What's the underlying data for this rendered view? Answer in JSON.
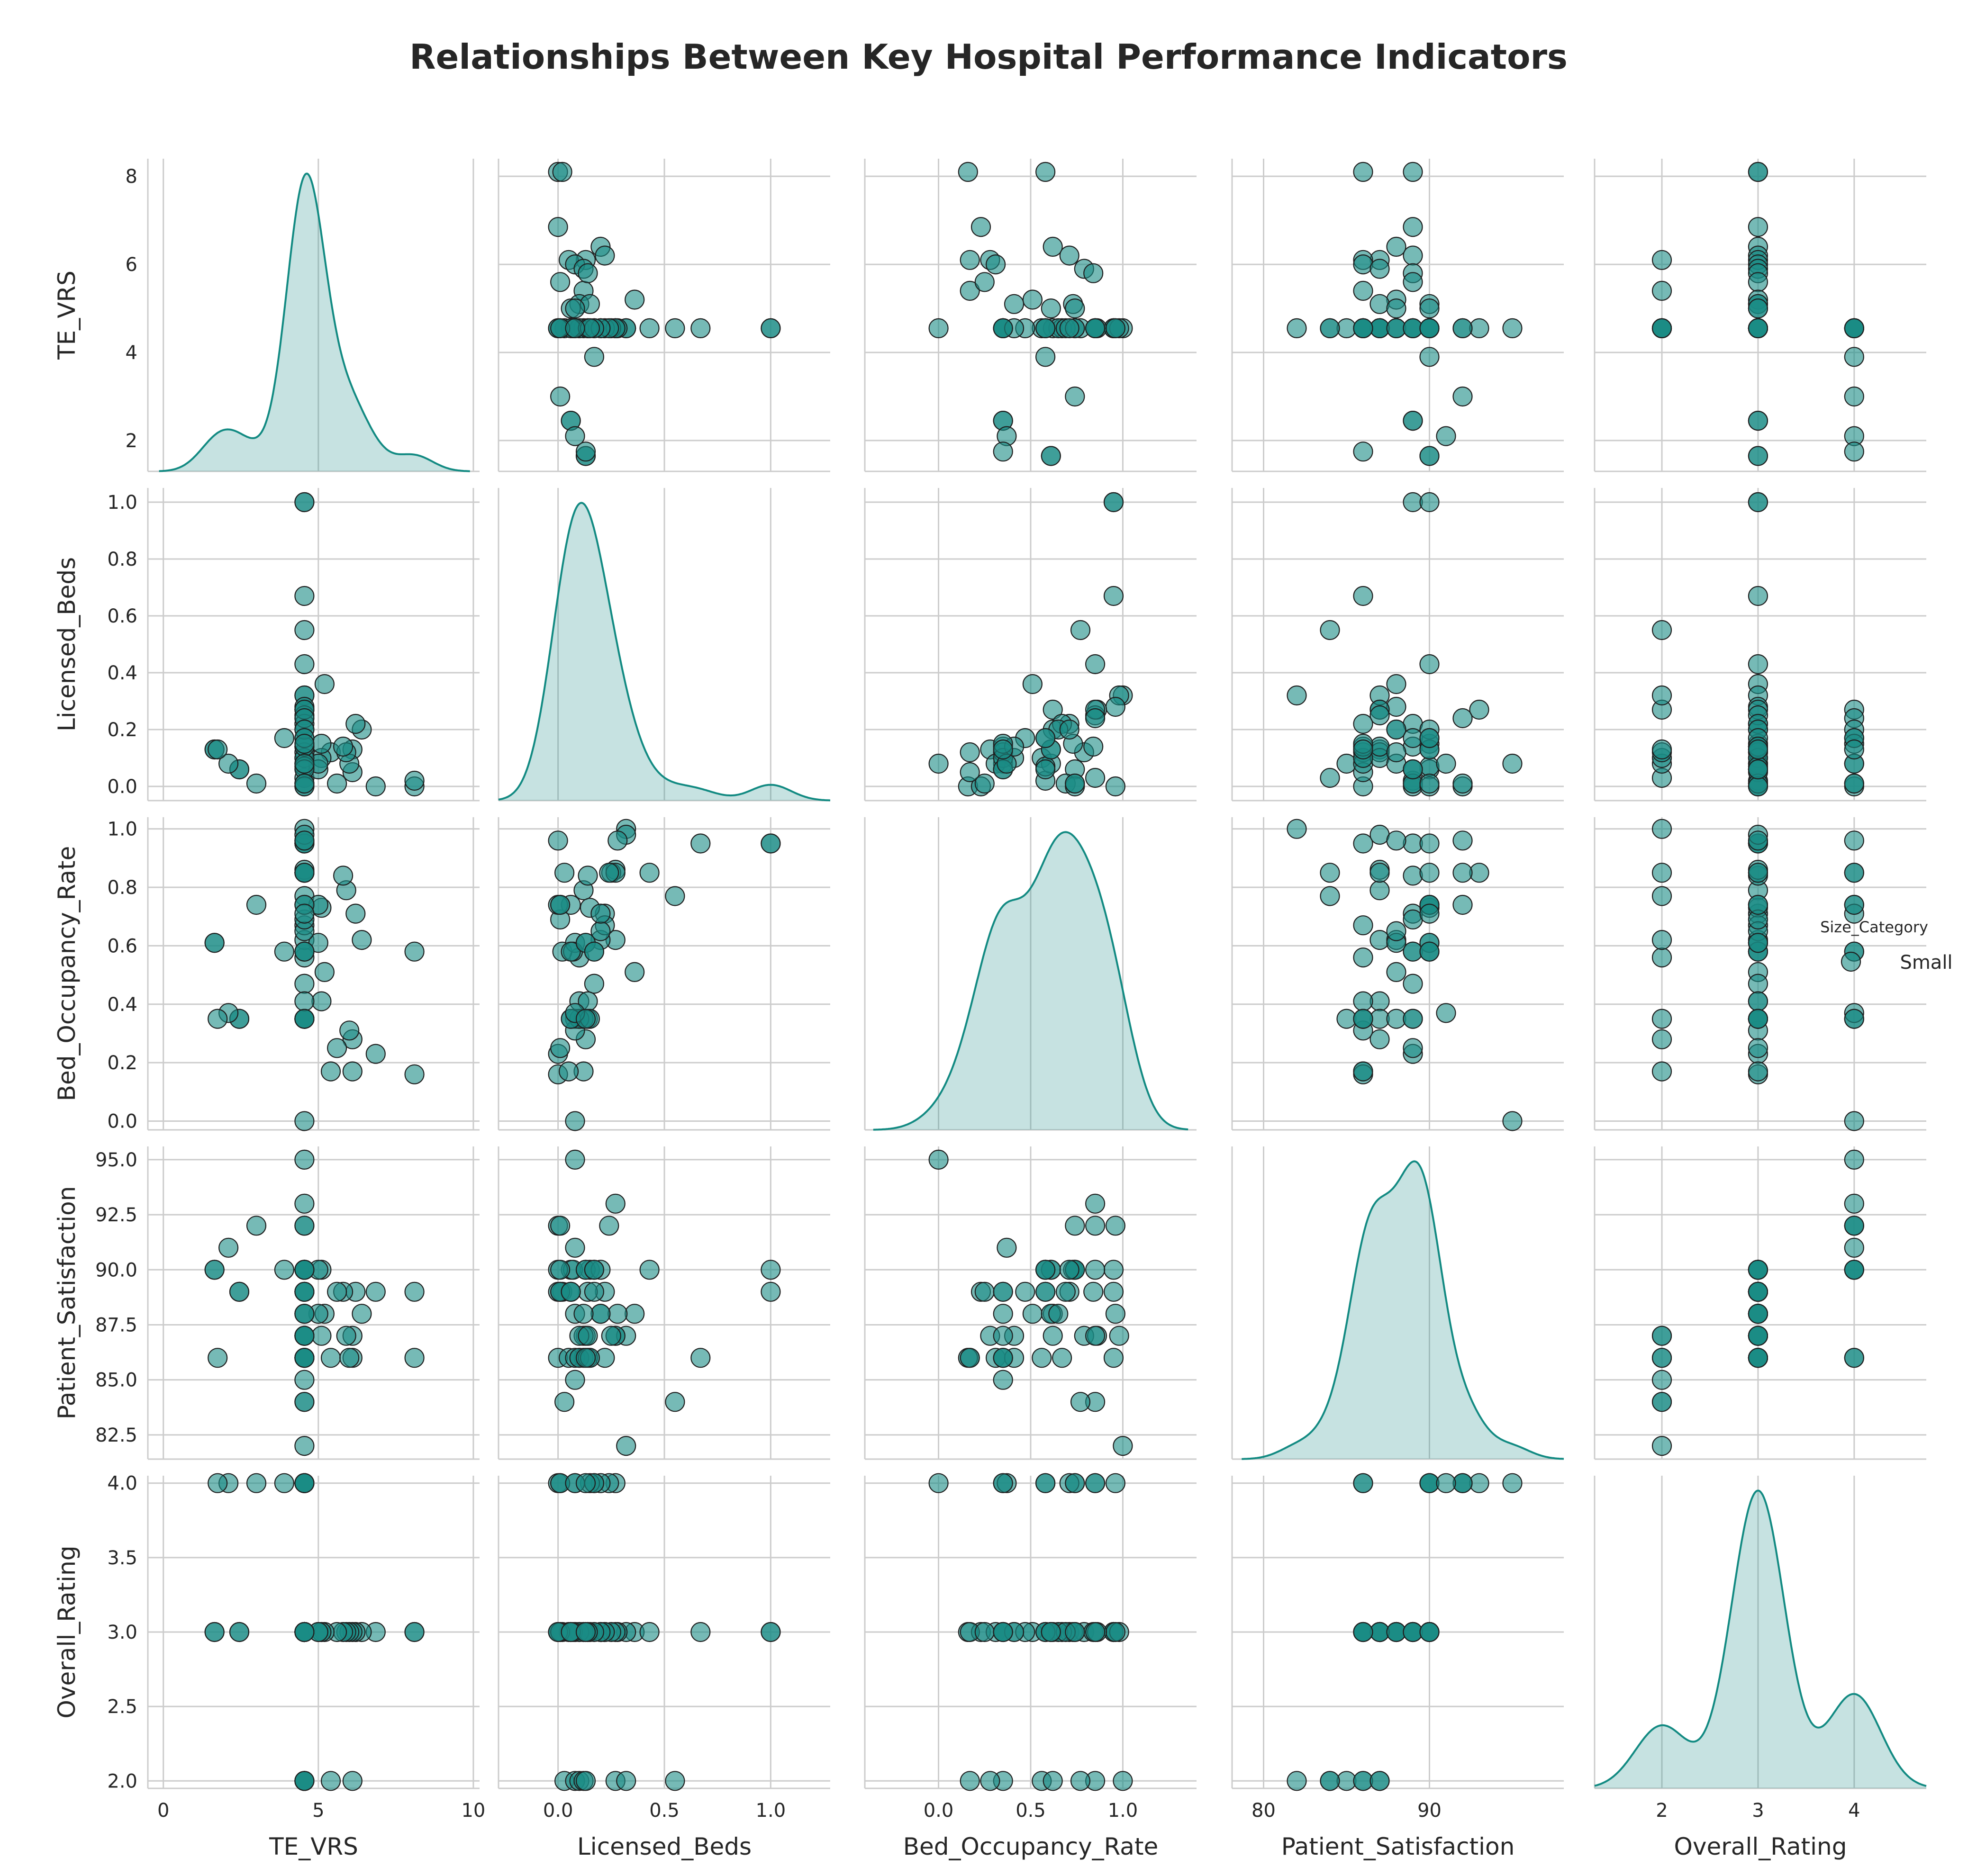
{
  "title": "Relationships Between Key Hospital Performance Indicators",
  "legend": {
    "title": "Size_Category",
    "label": "Small"
  },
  "colors": {
    "point": "#1a8c86",
    "kde_fill": "#1a8c86",
    "kde_line": "#128a82",
    "grid": "#cccccc"
  },
  "chart_data": {
    "type": "scatter",
    "variables": [
      "TE_VRS",
      "Licensed_Beds",
      "Bed_Occupancy_Rate",
      "Patient_Satisfaction",
      "Overall_Rating"
    ],
    "hue": {
      "name": "Size_Category",
      "levels": [
        "Small"
      ]
    },
    "diagonal": "kde",
    "axes": {
      "TE_VRS": {
        "lim": [
          -0.5,
          10.2
        ],
        "ticks": [
          0,
          5,
          10
        ],
        "tick_labels": [
          "0",
          "5",
          "10"
        ],
        "y_lim": [
          1.3,
          8.4
        ],
        "y_ticks": [
          2,
          4,
          6,
          8
        ],
        "y_tick_labels": [
          "2",
          "4",
          "6",
          "8"
        ]
      },
      "Licensed_Beds": {
        "lim": [
          -0.28,
          1.28
        ],
        "ticks": [
          0.0,
          0.5,
          1.0
        ],
        "tick_labels": [
          "0.0",
          "0.5",
          "1.0"
        ],
        "y_lim": [
          -0.05,
          1.05
        ],
        "y_ticks": [
          0.0,
          0.2,
          0.4,
          0.6,
          0.8,
          1.0
        ],
        "y_tick_labels": [
          "0.0",
          "0.2",
          "0.4",
          "0.6",
          "0.8",
          "1.0"
        ]
      },
      "Bed_Occupancy_Rate": {
        "lim": [
          -0.4,
          1.4
        ],
        "ticks": [
          0.0,
          0.5,
          1.0
        ],
        "tick_labels": [
          "0.0",
          "0.5",
          "1.0"
        ],
        "y_lim": [
          -0.03,
          1.04
        ],
        "y_ticks": [
          0.0,
          0.2,
          0.4,
          0.6,
          0.8,
          1.0
        ],
        "y_tick_labels": [
          "0.0",
          "0.2",
          "0.4",
          "0.6",
          "0.8",
          "1.0"
        ]
      },
      "Patient_Satisfaction": {
        "lim": [
          78.1,
          98.1
        ],
        "ticks": [
          80,
          90
        ],
        "tick_labels": [
          "80",
          "90"
        ],
        "y_lim": [
          81.4,
          95.6
        ],
        "y_ticks": [
          82.5,
          85.0,
          87.5,
          90.0,
          92.5,
          95.0
        ],
        "y_tick_labels": [
          "82.5",
          "85.0",
          "87.5",
          "90.0",
          "92.5",
          "95.0"
        ]
      },
      "Overall_Rating": {
        "lim": [
          1.3,
          4.75
        ],
        "ticks": [
          2,
          3,
          4
        ],
        "tick_labels": [
          "2",
          "3",
          "4"
        ],
        "y_lim": [
          1.95,
          4.05
        ],
        "y_ticks": [
          2.0,
          2.5,
          3.0,
          3.5,
          4.0
        ],
        "y_tick_labels": [
          "2.0",
          "2.5",
          "3.0",
          "3.5",
          "4.0"
        ]
      }
    },
    "points": [
      {
        "TE_VRS": 4.55,
        "Licensed_Beds": 0.03,
        "Bed_Occupancy_Rate": 0.85,
        "Patient_Satisfaction": 84,
        "Overall_Rating": 2
      },
      {
        "TE_VRS": 4.55,
        "Licensed_Beds": 0.08,
        "Bed_Occupancy_Rate": 0.35,
        "Patient_Satisfaction": 85,
        "Overall_Rating": 2
      },
      {
        "TE_VRS": 4.55,
        "Licensed_Beds": 0.1,
        "Bed_Occupancy_Rate": 0.56,
        "Patient_Satisfaction": 86,
        "Overall_Rating": 2
      },
      {
        "TE_VRS": 4.55,
        "Licensed_Beds": 0.27,
        "Bed_Occupancy_Rate": 0.62,
        "Patient_Satisfaction": 87,
        "Overall_Rating": 2
      },
      {
        "TE_VRS": 4.55,
        "Licensed_Beds": 0.55,
        "Bed_Occupancy_Rate": 0.77,
        "Patient_Satisfaction": 84,
        "Overall_Rating": 2
      },
      {
        "TE_VRS": 4.55,
        "Licensed_Beds": 0.32,
        "Bed_Occupancy_Rate": 1.0,
        "Patient_Satisfaction": 82,
        "Overall_Rating": 2
      },
      {
        "TE_VRS": 5.4,
        "Licensed_Beds": 0.12,
        "Bed_Occupancy_Rate": 0.17,
        "Patient_Satisfaction": 86,
        "Overall_Rating": 2
      },
      {
        "TE_VRS": 6.1,
        "Licensed_Beds": 0.13,
        "Bed_Occupancy_Rate": 0.28,
        "Patient_Satisfaction": 87,
        "Overall_Rating": 2
      },
      {
        "TE_VRS": 8.1,
        "Licensed_Beds": 0.0,
        "Bed_Occupancy_Rate": 0.16,
        "Patient_Satisfaction": 86,
        "Overall_Rating": 3
      },
      {
        "TE_VRS": 8.1,
        "Licensed_Beds": 0.02,
        "Bed_Occupancy_Rate": 0.58,
        "Patient_Satisfaction": 89,
        "Overall_Rating": 3
      },
      {
        "TE_VRS": 6.85,
        "Licensed_Beds": 0.0,
        "Bed_Occupancy_Rate": 0.23,
        "Patient_Satisfaction": 89,
        "Overall_Rating": 3
      },
      {
        "TE_VRS": 6.4,
        "Licensed_Beds": 0.2,
        "Bed_Occupancy_Rate": 0.62,
        "Patient_Satisfaction": 88,
        "Overall_Rating": 3
      },
      {
        "TE_VRS": 6.2,
        "Licensed_Beds": 0.22,
        "Bed_Occupancy_Rate": 0.71,
        "Patient_Satisfaction": 89,
        "Overall_Rating": 3
      },
      {
        "TE_VRS": 6.1,
        "Licensed_Beds": 0.05,
        "Bed_Occupancy_Rate": 0.17,
        "Patient_Satisfaction": 86,
        "Overall_Rating": 3
      },
      {
        "TE_VRS": 6.0,
        "Licensed_Beds": 0.08,
        "Bed_Occupancy_Rate": 0.31,
        "Patient_Satisfaction": 86,
        "Overall_Rating": 3
      },
      {
        "TE_VRS": 5.9,
        "Licensed_Beds": 0.12,
        "Bed_Occupancy_Rate": 0.79,
        "Patient_Satisfaction": 87,
        "Overall_Rating": 3
      },
      {
        "TE_VRS": 5.8,
        "Licensed_Beds": 0.14,
        "Bed_Occupancy_Rate": 0.84,
        "Patient_Satisfaction": 89,
        "Overall_Rating": 3
      },
      {
        "TE_VRS": 5.6,
        "Licensed_Beds": 0.01,
        "Bed_Occupancy_Rate": 0.25,
        "Patient_Satisfaction": 89,
        "Overall_Rating": 3
      },
      {
        "TE_VRS": 5.2,
        "Licensed_Beds": 0.36,
        "Bed_Occupancy_Rate": 0.51,
        "Patient_Satisfaction": 88,
        "Overall_Rating": 3
      },
      {
        "TE_VRS": 5.1,
        "Licensed_Beds": 0.1,
        "Bed_Occupancy_Rate": 0.41,
        "Patient_Satisfaction": 87,
        "Overall_Rating": 3
      },
      {
        "TE_VRS": 5.1,
        "Licensed_Beds": 0.15,
        "Bed_Occupancy_Rate": 0.73,
        "Patient_Satisfaction": 90,
        "Overall_Rating": 3
      },
      {
        "TE_VRS": 5.0,
        "Licensed_Beds": 0.06,
        "Bed_Occupancy_Rate": 0.74,
        "Patient_Satisfaction": 90,
        "Overall_Rating": 3
      },
      {
        "TE_VRS": 5.0,
        "Licensed_Beds": 0.08,
        "Bed_Occupancy_Rate": 0.61,
        "Patient_Satisfaction": 88,
        "Overall_Rating": 3
      },
      {
        "TE_VRS": 4.55,
        "Licensed_Beds": 1.0,
        "Bed_Occupancy_Rate": 0.95,
        "Patient_Satisfaction": 89,
        "Overall_Rating": 3
      },
      {
        "TE_VRS": 4.55,
        "Licensed_Beds": 1.0,
        "Bed_Occupancy_Rate": 0.95,
        "Patient_Satisfaction": 90,
        "Overall_Rating": 3
      },
      {
        "TE_VRS": 4.55,
        "Licensed_Beds": 0.67,
        "Bed_Occupancy_Rate": 0.95,
        "Patient_Satisfaction": 86,
        "Overall_Rating": 3
      },
      {
        "TE_VRS": 4.55,
        "Licensed_Beds": 0.43,
        "Bed_Occupancy_Rate": 0.85,
        "Patient_Satisfaction": 90,
        "Overall_Rating": 3
      },
      {
        "TE_VRS": 4.55,
        "Licensed_Beds": 0.32,
        "Bed_Occupancy_Rate": 0.98,
        "Patient_Satisfaction": 87,
        "Overall_Rating": 3
      },
      {
        "TE_VRS": 4.55,
        "Licensed_Beds": 0.28,
        "Bed_Occupancy_Rate": 0.96,
        "Patient_Satisfaction": 88,
        "Overall_Rating": 3
      },
      {
        "TE_VRS": 4.55,
        "Licensed_Beds": 0.27,
        "Bed_Occupancy_Rate": 0.86,
        "Patient_Satisfaction": 87,
        "Overall_Rating": 3
      },
      {
        "TE_VRS": 4.55,
        "Licensed_Beds": 0.25,
        "Bed_Occupancy_Rate": 0.85,
        "Patient_Satisfaction": 87,
        "Overall_Rating": 3
      },
      {
        "TE_VRS": 4.55,
        "Licensed_Beds": 0.22,
        "Bed_Occupancy_Rate": 0.67,
        "Patient_Satisfaction": 86,
        "Overall_Rating": 3
      },
      {
        "TE_VRS": 4.55,
        "Licensed_Beds": 0.2,
        "Bed_Occupancy_Rate": 0.65,
        "Patient_Satisfaction": 88,
        "Overall_Rating": 3
      },
      {
        "TE_VRS": 4.55,
        "Licensed_Beds": 0.17,
        "Bed_Occupancy_Rate": 0.47,
        "Patient_Satisfaction": 89,
        "Overall_Rating": 3
      },
      {
        "TE_VRS": 4.55,
        "Licensed_Beds": 0.14,
        "Bed_Occupancy_Rate": 0.35,
        "Patient_Satisfaction": 87,
        "Overall_Rating": 3
      },
      {
        "TE_VRS": 4.55,
        "Licensed_Beds": 0.12,
        "Bed_Occupancy_Rate": 0.35,
        "Patient_Satisfaction": 88,
        "Overall_Rating": 3
      },
      {
        "TE_VRS": 4.55,
        "Licensed_Beds": 0.1,
        "Bed_Occupancy_Rate": 0.35,
        "Patient_Satisfaction": 86,
        "Overall_Rating": 3
      },
      {
        "TE_VRS": 4.55,
        "Licensed_Beds": 0.07,
        "Bed_Occupancy_Rate": 0.58,
        "Patient_Satisfaction": 90,
        "Overall_Rating": 3
      },
      {
        "TE_VRS": 4.55,
        "Licensed_Beds": 0.06,
        "Bed_Occupancy_Rate": 0.58,
        "Patient_Satisfaction": 89,
        "Overall_Rating": 3
      },
      {
        "TE_VRS": 4.55,
        "Licensed_Beds": 0.01,
        "Bed_Occupancy_Rate": 0.69,
        "Patient_Satisfaction": 89,
        "Overall_Rating": 3
      },
      {
        "TE_VRS": 4.55,
        "Licensed_Beds": 0.0,
        "Bed_Occupancy_Rate": 0.74,
        "Patient_Satisfaction": 90,
        "Overall_Rating": 3
      },
      {
        "TE_VRS": 4.55,
        "Licensed_Beds": 0.14,
        "Bed_Occupancy_Rate": 0.41,
        "Patient_Satisfaction": 86,
        "Overall_Rating": 3
      },
      {
        "TE_VRS": 2.45,
        "Licensed_Beds": 0.06,
        "Bed_Occupancy_Rate": 0.35,
        "Patient_Satisfaction": 89,
        "Overall_Rating": 3
      },
      {
        "TE_VRS": 2.45,
        "Licensed_Beds": 0.06,
        "Bed_Occupancy_Rate": 0.35,
        "Patient_Satisfaction": 89,
        "Overall_Rating": 3
      },
      {
        "TE_VRS": 1.65,
        "Licensed_Beds": 0.13,
        "Bed_Occupancy_Rate": 0.61,
        "Patient_Satisfaction": 90,
        "Overall_Rating": 3
      },
      {
        "TE_VRS": 1.65,
        "Licensed_Beds": 0.13,
        "Bed_Occupancy_Rate": 0.61,
        "Patient_Satisfaction": 90,
        "Overall_Rating": 3
      },
      {
        "TE_VRS": 4.55,
        "Licensed_Beds": 0.0,
        "Bed_Occupancy_Rate": 0.96,
        "Patient_Satisfaction": 92,
        "Overall_Rating": 4
      },
      {
        "TE_VRS": 4.55,
        "Licensed_Beds": 0.01,
        "Bed_Occupancy_Rate": 0.74,
        "Patient_Satisfaction": 90,
        "Overall_Rating": 4
      },
      {
        "TE_VRS": 4.55,
        "Licensed_Beds": 0.27,
        "Bed_Occupancy_Rate": 0.85,
        "Patient_Satisfaction": 93,
        "Overall_Rating": 4
      },
      {
        "TE_VRS": 4.55,
        "Licensed_Beds": 0.24,
        "Bed_Occupancy_Rate": 0.85,
        "Patient_Satisfaction": 92,
        "Overall_Rating": 4
      },
      {
        "TE_VRS": 4.55,
        "Licensed_Beds": 0.2,
        "Bed_Occupancy_Rate": 0.71,
        "Patient_Satisfaction": 90,
        "Overall_Rating": 4
      },
      {
        "TE_VRS": 4.55,
        "Licensed_Beds": 0.17,
        "Bed_Occupancy_Rate": 0.58,
        "Patient_Satisfaction": 90,
        "Overall_Rating": 4
      },
      {
        "TE_VRS": 4.55,
        "Licensed_Beds": 0.15,
        "Bed_Occupancy_Rate": 0.35,
        "Patient_Satisfaction": 86,
        "Overall_Rating": 4
      },
      {
        "TE_VRS": 4.55,
        "Licensed_Beds": 0.08,
        "Bed_Occupancy_Rate": 0.0,
        "Patient_Satisfaction": 95,
        "Overall_Rating": 4
      },
      {
        "TE_VRS": 3.9,
        "Licensed_Beds": 0.17,
        "Bed_Occupancy_Rate": 0.58,
        "Patient_Satisfaction": 90,
        "Overall_Rating": 4
      },
      {
        "TE_VRS": 3.0,
        "Licensed_Beds": 0.01,
        "Bed_Occupancy_Rate": 0.74,
        "Patient_Satisfaction": 92,
        "Overall_Rating": 4
      },
      {
        "TE_VRS": 2.1,
        "Licensed_Beds": 0.08,
        "Bed_Occupancy_Rate": 0.37,
        "Patient_Satisfaction": 91,
        "Overall_Rating": 4
      },
      {
        "TE_VRS": 1.75,
        "Licensed_Beds": 0.13,
        "Bed_Occupancy_Rate": 0.35,
        "Patient_Satisfaction": 86,
        "Overall_Rating": 4
      }
    ]
  }
}
